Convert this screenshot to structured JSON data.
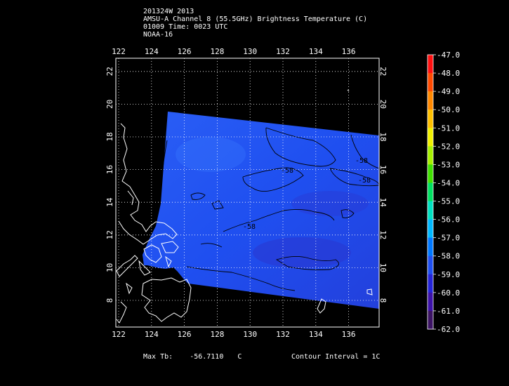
{
  "header": {
    "lines": [
      "201324W 2013",
      "AMSU-A Channel 8 (55.5GHz) Brightness Temperature (C)",
      "01009 Time: 0023 UTC",
      "NOAA-16"
    ]
  },
  "map": {
    "lon_ticks": [
      "122",
      "124",
      "126",
      "128",
      "130",
      "132",
      "134",
      "136"
    ],
    "lat_ticks": [
      "8",
      "10",
      "12",
      "14",
      "16",
      "18",
      "20",
      "22"
    ],
    "contour_labels": [
      "-58",
      "-58",
      "-58",
      "-58"
    ],
    "colors": {
      "background": "#000000",
      "swath": "#1f4ff0",
      "coast": "#ffffff",
      "grid": "#ffffff",
      "contour": "#000000"
    }
  },
  "colorbar": {
    "labels": [
      "-47.0",
      "-48.0",
      "-49.0",
      "-50.0",
      "-51.0",
      "-52.0",
      "-53.0",
      "-54.0",
      "-55.0",
      "-56.0",
      "-57.0",
      "-58.0",
      "-59.0",
      "-60.0",
      "-61.0",
      "-62.0"
    ],
    "colors": [
      "#ff1010",
      "#ff4a00",
      "#ff8800",
      "#ffc000",
      "#f0f000",
      "#a6f000",
      "#40e000",
      "#00e060",
      "#00e0c0",
      "#00b8ff",
      "#0078ff",
      "#1f4ff0",
      "#2424d8",
      "#3c12a8",
      "#3c1464",
      "#ffffff"
    ]
  },
  "footer": {
    "max_label": "Max Tb:",
    "max_value": "-56.7110",
    "max_unit": "C",
    "contour_label": "Contour Interval = 1C"
  }
}
